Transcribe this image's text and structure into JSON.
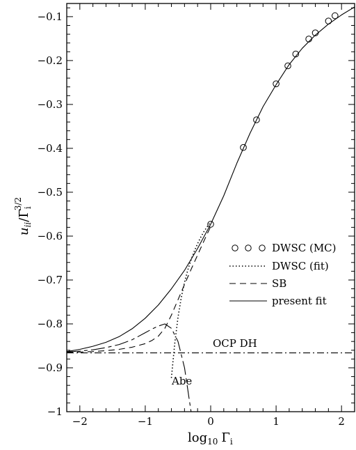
{
  "chart_data": {
    "type": "line",
    "title": "",
    "xlabel_parts": {
      "main": "log",
      "sub": "10",
      "var": "Γ",
      "var_sub": "i"
    },
    "ylabel_parts": {
      "main": "u",
      "main_sub": "ii",
      "slash": "/",
      "var": "Γ",
      "var_sub": "i",
      "var_sup": "3/2"
    },
    "xlim": [
      -2.2,
      2.2
    ],
    "ylim": [
      -1.0,
      -0.07
    ],
    "x_ticks": [
      -2,
      -1,
      0,
      1,
      2
    ],
    "x_tick_labels": [
      "−2",
      "−1",
      "0",
      "1",
      "2"
    ],
    "y_ticks": [
      -0.1,
      -0.2,
      -0.3,
      -0.4,
      -0.5,
      -0.6,
      -0.7,
      -0.8,
      -0.9,
      -1.0
    ],
    "y_tick_labels": [
      "−0.1",
      "−0.2",
      "−0.3",
      "−0.4",
      "−0.5",
      "−0.6",
      "−0.7",
      "−0.8",
      "−0.9",
      "−1"
    ],
    "legend_position": "center-right",
    "series": [
      {
        "name": "DWSC (MC)",
        "style": "markers",
        "x": [
          0.0,
          0.5,
          0.7,
          1.0,
          1.18,
          1.3,
          1.5,
          1.6,
          1.8,
          1.9
        ],
        "y": [
          -0.573,
          -0.398,
          -0.335,
          -0.253,
          -0.212,
          -0.185,
          -0.151,
          -0.137,
          -0.11,
          -0.098
        ]
      },
      {
        "name": "DWSC (fit)",
        "style": "dotted",
        "x": [
          -0.6,
          -0.55,
          -0.5,
          -0.45,
          -0.4,
          -0.35,
          -0.3,
          -0.25,
          -0.2,
          -0.15,
          -0.1,
          -0.05,
          0.0
        ],
        "y": [
          -0.923,
          -0.845,
          -0.785,
          -0.74,
          -0.705,
          -0.677,
          -0.654,
          -0.634,
          -0.617,
          -0.602,
          -0.589,
          -0.578,
          -0.568
        ]
      },
      {
        "name": "SB",
        "style": "dashed",
        "x": [
          -2.2,
          -2.0,
          -1.8,
          -1.6,
          -1.4,
          -1.2,
          -1.0,
          -0.9,
          -0.8,
          -0.7,
          -0.6,
          -0.5,
          -0.4,
          -0.3,
          -0.2,
          -0.1,
          0.0
        ],
        "y": [
          -0.865,
          -0.864,
          -0.863,
          -0.861,
          -0.858,
          -0.853,
          -0.845,
          -0.838,
          -0.828,
          -0.81,
          -0.78,
          -0.745,
          -0.71,
          -0.676,
          -0.643,
          -0.61,
          -0.578
        ]
      },
      {
        "name": "present fit",
        "style": "solid",
        "x": [
          -2.2,
          -2.0,
          -1.8,
          -1.6,
          -1.4,
          -1.2,
          -1.0,
          -0.8,
          -0.6,
          -0.4,
          -0.2,
          0.0,
          0.2,
          0.4,
          0.6,
          0.8,
          1.0,
          1.2,
          1.4,
          1.6,
          1.8,
          2.0,
          2.2
        ],
        "y": [
          -0.863,
          -0.858,
          -0.851,
          -0.842,
          -0.829,
          -0.811,
          -0.787,
          -0.757,
          -0.72,
          -0.678,
          -0.628,
          -0.573,
          -0.508,
          -0.434,
          -0.366,
          -0.305,
          -0.255,
          -0.209,
          -0.172,
          -0.142,
          -0.117,
          -0.096,
          -0.078
        ]
      },
      {
        "name": "Abe",
        "style": "long-dash",
        "x": [
          -2.2,
          -2.0,
          -1.8,
          -1.6,
          -1.4,
          -1.2,
          -1.0,
          -0.9,
          -0.8,
          -0.7,
          -0.6,
          -0.5,
          -0.45,
          -0.4,
          -0.35,
          -0.32,
          -0.3
        ],
        "y": [
          -0.864,
          -0.862,
          -0.859,
          -0.854,
          -0.847,
          -0.836,
          -0.82,
          -0.812,
          -0.805,
          -0.8,
          -0.81,
          -0.84,
          -0.87,
          -0.9,
          -0.95,
          -0.98,
          -1.0
        ]
      },
      {
        "name": "OCP DH",
        "style": "dash-dot",
        "x": [
          -2.2,
          2.2
        ],
        "y": [
          -0.866,
          -0.866
        ]
      }
    ],
    "legend": [
      {
        "label": "DWSC (MC)",
        "style": "markers"
      },
      {
        "label": "DWSC (fit)",
        "style": "dotted"
      },
      {
        "label": "SB",
        "style": "dashed"
      },
      {
        "label": "present fit",
        "style": "solid"
      }
    ],
    "annotations": [
      {
        "text": "OCP DH",
        "x": 0.0,
        "y": -0.855
      },
      {
        "text": "Abe",
        "x": -0.6,
        "y": -0.93
      }
    ]
  }
}
